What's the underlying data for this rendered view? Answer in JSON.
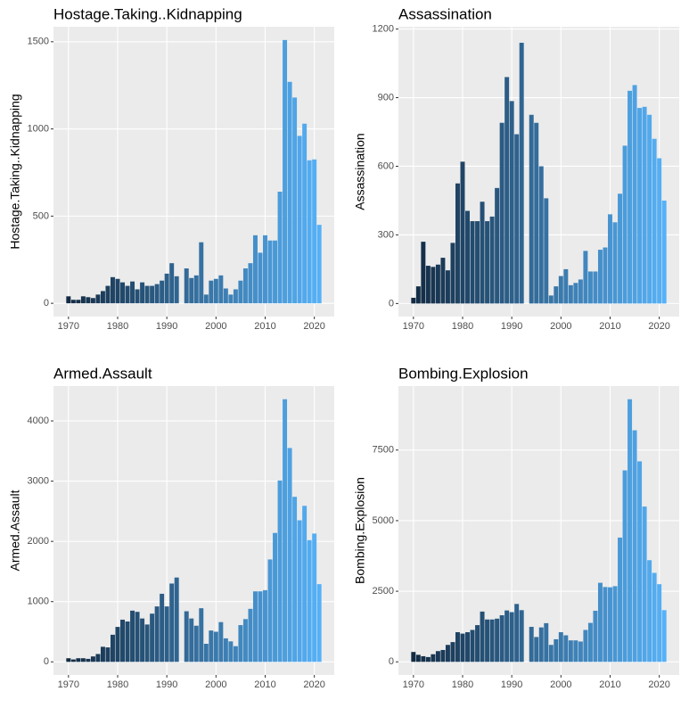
{
  "chart_data": [
    {
      "type": "bar",
      "title": "Hostage.Taking..Kidnapping",
      "ylabel": "Hostage.Taking..Kidnapping",
      "x": [
        1970,
        1971,
        1972,
        1973,
        1974,
        1975,
        1976,
        1977,
        1978,
        1979,
        1980,
        1981,
        1982,
        1983,
        1984,
        1985,
        1986,
        1987,
        1988,
        1989,
        1990,
        1991,
        1992,
        1994,
        1995,
        1996,
        1997,
        1998,
        1999,
        2000,
        2001,
        2002,
        2003,
        2004,
        2005,
        2006,
        2007,
        2008,
        2009,
        2010,
        2011,
        2012,
        2013,
        2014,
        2015,
        2016,
        2017,
        2018,
        2019,
        2020,
        2021
      ],
      "values": [
        40,
        20,
        20,
        40,
        35,
        30,
        50,
        70,
        100,
        150,
        140,
        120,
        100,
        125,
        80,
        120,
        100,
        100,
        110,
        130,
        170,
        230,
        155,
        200,
        145,
        160,
        350,
        50,
        130,
        140,
        160,
        85,
        50,
        80,
        130,
        200,
        230,
        390,
        290,
        390,
        360,
        360,
        640,
        1510,
        1270,
        1180,
        960,
        1030,
        820,
        825,
        450
      ],
      "color_scale": [
        "#132B43",
        "#56B1F7"
      ],
      "xlim": [
        1966.95,
        2024.05
      ],
      "xticks": [
        1970,
        1980,
        1990,
        2000,
        2010,
        2020
      ],
      "ylim": [
        -76,
        1586
      ],
      "yticks": [
        0,
        500,
        1000,
        1500
      ],
      "grid": true
    },
    {
      "type": "bar",
      "title": "Assassination",
      "ylabel": "Assassination",
      "x": [
        1970,
        1971,
        1972,
        1973,
        1974,
        1975,
        1976,
        1977,
        1978,
        1979,
        1980,
        1981,
        1982,
        1983,
        1984,
        1985,
        1986,
        1987,
        1988,
        1989,
        1990,
        1991,
        1992,
        1994,
        1995,
        1996,
        1997,
        1998,
        1999,
        2000,
        2001,
        2002,
        2003,
        2004,
        2005,
        2006,
        2007,
        2008,
        2009,
        2010,
        2011,
        2012,
        2013,
        2014,
        2015,
        2016,
        2017,
        2018,
        2019,
        2020,
        2021
      ],
      "values": [
        25,
        75,
        270,
        165,
        160,
        170,
        200,
        145,
        265,
        525,
        620,
        405,
        360,
        360,
        445,
        360,
        380,
        505,
        790,
        990,
        885,
        740,
        1140,
        825,
        790,
        600,
        460,
        35,
        75,
        120,
        150,
        80,
        90,
        105,
        230,
        140,
        140,
        235,
        245,
        390,
        355,
        480,
        690,
        930,
        955,
        855,
        860,
        825,
        720,
        635,
        450
      ],
      "color_scale": [
        "#132B43",
        "#56B1F7"
      ],
      "xlim": [
        1966.95,
        2024.05
      ],
      "xticks": [
        1970,
        1980,
        1990,
        2000,
        2010,
        2020
      ],
      "ylim": [
        -57,
        1210
      ],
      "yticks": [
        0,
        300,
        600,
        900,
        1200
      ],
      "grid": true
    },
    {
      "type": "bar",
      "title": "Armed.Assault",
      "ylabel": "Armed.Assault",
      "x": [
        1970,
        1971,
        1972,
        1973,
        1974,
        1975,
        1976,
        1977,
        1978,
        1979,
        1980,
        1981,
        1982,
        1983,
        1984,
        1985,
        1986,
        1987,
        1988,
        1989,
        1990,
        1991,
        1992,
        1994,
        1995,
        1996,
        1997,
        1998,
        1999,
        2000,
        2001,
        2002,
        2003,
        2004,
        2005,
        2006,
        2007,
        2008,
        2009,
        2010,
        2011,
        2012,
        2013,
        2014,
        2015,
        2016,
        2017,
        2018,
        2019,
        2020,
        2021
      ],
      "values": [
        60,
        40,
        60,
        60,
        50,
        90,
        130,
        250,
        240,
        450,
        580,
        700,
        670,
        850,
        830,
        720,
        620,
        800,
        920,
        1130,
        920,
        1300,
        1400,
        840,
        720,
        600,
        890,
        300,
        520,
        500,
        660,
        390,
        340,
        260,
        610,
        710,
        880,
        1170,
        1170,
        1190,
        1700,
        2140,
        3010,
        4360,
        3550,
        2740,
        2350,
        2590,
        2020,
        2130,
        1290
      ],
      "color_scale": [
        "#132B43",
        "#56B1F7"
      ],
      "xlim": [
        1966.95,
        2024.05
      ],
      "xticks": [
        1970,
        1980,
        1990,
        2000,
        2010,
        2020
      ],
      "ylim": [
        -218,
        4578
      ],
      "yticks": [
        0,
        1000,
        2000,
        3000,
        4000
      ],
      "grid": true
    },
    {
      "type": "bar",
      "title": "Bombing.Explosion",
      "ylabel": "Bombing.Explosion",
      "x": [
        1970,
        1971,
        1972,
        1973,
        1974,
        1975,
        1976,
        1977,
        1978,
        1979,
        1980,
        1981,
        1982,
        1983,
        1984,
        1985,
        1986,
        1987,
        1988,
        1989,
        1990,
        1991,
        1992,
        1994,
        1995,
        1996,
        1997,
        1998,
        1999,
        2000,
        2001,
        2002,
        2003,
        2004,
        2005,
        2006,
        2007,
        2008,
        2009,
        2010,
        2011,
        2012,
        2013,
        2014,
        2015,
        2016,
        2017,
        2018,
        2019,
        2020,
        2021
      ],
      "values": [
        350,
        250,
        200,
        170,
        270,
        380,
        420,
        600,
        700,
        1050,
        1000,
        1050,
        1130,
        1300,
        1780,
        1500,
        1500,
        1530,
        1650,
        1820,
        1760,
        2050,
        1830,
        1240,
        880,
        1220,
        1370,
        600,
        800,
        1050,
        940,
        760,
        760,
        720,
        1130,
        1380,
        1810,
        2800,
        2650,
        2640,
        2680,
        4400,
        6780,
        9300,
        8200,
        7100,
        5500,
        3600,
        3150,
        2750,
        1830
      ],
      "color_scale": [
        "#132B43",
        "#56B1F7"
      ],
      "xlim": [
        1966.95,
        2024.05
      ],
      "xticks": [
        1970,
        1980,
        1990,
        2000,
        2010,
        2020
      ],
      "ylim": [
        -465,
        9765
      ],
      "yticks": [
        0,
        2500,
        5000,
        7500
      ],
      "grid": true
    }
  ]
}
